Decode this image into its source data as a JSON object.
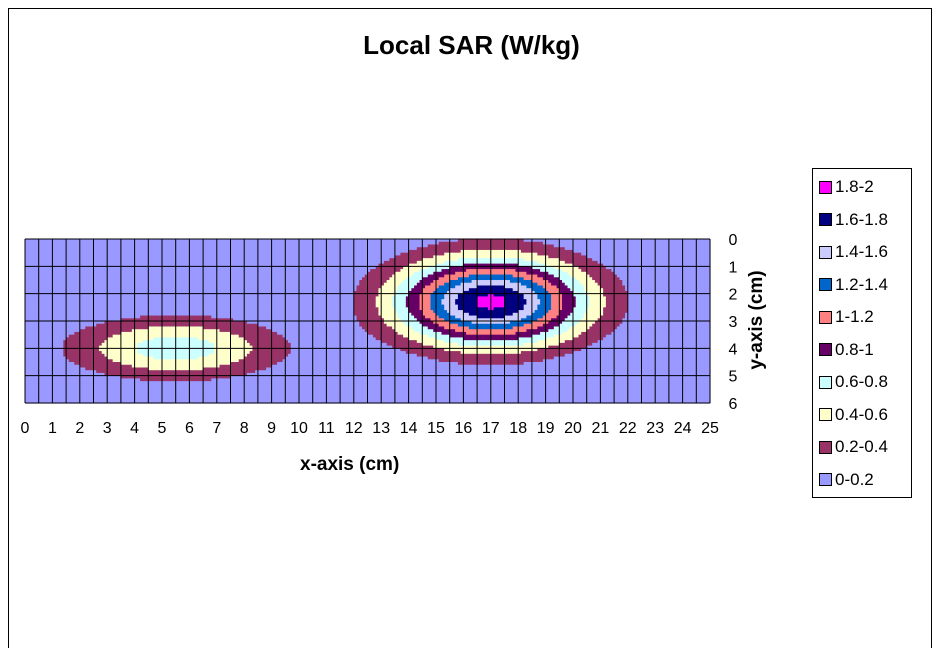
{
  "chart_data": {
    "type": "heatmap",
    "title": "Local SAR (W/kg)",
    "xlabel": "x-axis (cm)",
    "ylabel": "y-axis (cm)",
    "x_ticks": [
      "0",
      "1",
      "2",
      "3",
      "4",
      "5",
      "6",
      "7",
      "8",
      "9",
      "10",
      "11",
      "12",
      "13",
      "14",
      "15",
      "16",
      "17",
      "18",
      "19",
      "20",
      "21",
      "22",
      "23",
      "24",
      "25"
    ],
    "y_ticks": [
      "0",
      "1",
      "2",
      "3",
      "4",
      "5",
      "6"
    ],
    "xlim": [
      0,
      25
    ],
    "ylim": [
      0,
      6
    ],
    "grid": true,
    "legend_position": "right",
    "bands": [
      {
        "label": "1.8-2",
        "color": "#FF00FF"
      },
      {
        "label": "1.6-1.8",
        "color": "#000080"
      },
      {
        "label": "1.4-1.6",
        "color": "#CCCCFF"
      },
      {
        "label": "1.2-1.4",
        "color": "#0066CC"
      },
      {
        "label": "1-1.2",
        "color": "#FF8080"
      },
      {
        "label": "0.8-1",
        "color": "#660066"
      },
      {
        "label": "0.6-0.8",
        "color": "#CCFFFF"
      },
      {
        "label": "0.4-0.6",
        "color": "#FFFFCC"
      },
      {
        "label": "0.2-0.4",
        "color": "#993366"
      },
      {
        "label": "0-0.2",
        "color": "#9999FF"
      }
    ],
    "hotspots": [
      {
        "x": 5.5,
        "y": 4.0,
        "peak": 0.7,
        "sx": 5.5,
        "sy": 1.6
      },
      {
        "x": 17.0,
        "y": 2.3,
        "peak": 1.85,
        "sx": 5.0,
        "sy": 2.3
      }
    ]
  }
}
